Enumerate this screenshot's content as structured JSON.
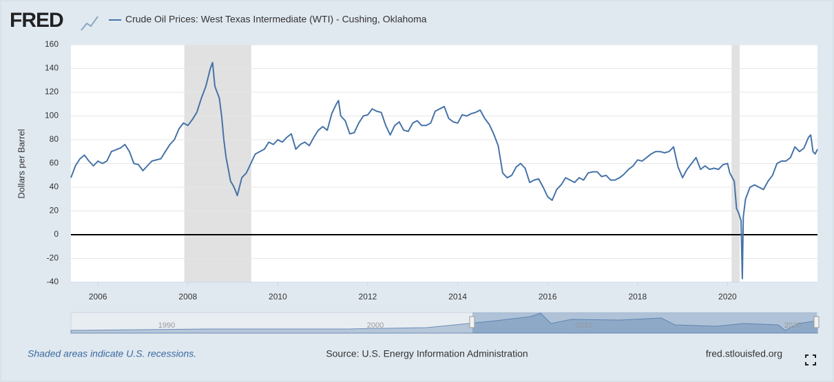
{
  "brand": "FRED",
  "chart_data": {
    "type": "line",
    "ylabel": "Dollars per Barrel",
    "xlim": [
      2005.4,
      2022.0
    ],
    "xticks": [
      2006,
      2008,
      2010,
      2012,
      2014,
      2016,
      2018,
      2020
    ],
    "ylim": [
      -40,
      160
    ],
    "yticks": [
      -40,
      -20,
      0,
      20,
      40,
      60,
      80,
      100,
      120,
      140,
      160
    ],
    "grid": true,
    "recessions": [
      [
        2007.92,
        2009.41
      ],
      [
        2020.09,
        2020.27
      ]
    ],
    "x": [
      2005.4,
      2005.5,
      2005.6,
      2005.7,
      2005.8,
      2005.9,
      2006.0,
      2006.1,
      2006.2,
      2006.3,
      2006.5,
      2006.6,
      2006.7,
      2006.8,
      2006.9,
      2007.0,
      2007.1,
      2007.2,
      2007.4,
      2007.5,
      2007.6,
      2007.7,
      2007.8,
      2007.9,
      2008.0,
      2008.1,
      2008.2,
      2008.3,
      2008.4,
      2008.5,
      2008.55,
      2008.6,
      2008.7,
      2008.75,
      2008.8,
      2008.85,
      2008.9,
      2008.95,
      2009.0,
      2009.05,
      2009.1,
      2009.2,
      2009.3,
      2009.4,
      2009.5,
      2009.6,
      2009.7,
      2009.8,
      2009.9,
      2010.0,
      2010.1,
      2010.2,
      2010.3,
      2010.4,
      2010.5,
      2010.6,
      2010.7,
      2010.8,
      2010.9,
      2011.0,
      2011.1,
      2011.2,
      2011.3,
      2011.35,
      2011.4,
      2011.5,
      2011.6,
      2011.7,
      2011.8,
      2011.9,
      2012.0,
      2012.1,
      2012.2,
      2012.3,
      2012.4,
      2012.5,
      2012.6,
      2012.7,
      2012.8,
      2012.9,
      2013.0,
      2013.1,
      2013.2,
      2013.3,
      2013.4,
      2013.5,
      2013.6,
      2013.7,
      2013.8,
      2013.9,
      2014.0,
      2014.1,
      2014.2,
      2014.3,
      2014.4,
      2014.5,
      2014.6,
      2014.7,
      2014.8,
      2014.9,
      2015.0,
      2015.1,
      2015.2,
      2015.3,
      2015.4,
      2015.5,
      2015.6,
      2015.7,
      2015.8,
      2015.9,
      2016.0,
      2016.1,
      2016.2,
      2016.3,
      2016.4,
      2016.5,
      2016.6,
      2016.7,
      2016.8,
      2016.9,
      2017.0,
      2017.1,
      2017.2,
      2017.3,
      2017.4,
      2017.5,
      2017.6,
      2017.7,
      2017.8,
      2017.9,
      2018.0,
      2018.1,
      2018.2,
      2018.3,
      2018.4,
      2018.5,
      2018.6,
      2018.7,
      2018.8,
      2018.9,
      2019.0,
      2019.1,
      2019.2,
      2019.3,
      2019.4,
      2019.5,
      2019.6,
      2019.7,
      2019.8,
      2019.9,
      2020.0,
      2020.05,
      2020.15,
      2020.2,
      2020.25,
      2020.3,
      2020.33,
      2020.35,
      2020.4,
      2020.5,
      2020.6,
      2020.7,
      2020.8,
      2020.9,
      2021.0,
      2021.1,
      2021.2,
      2021.3,
      2021.4,
      2021.5,
      2021.6,
      2021.7,
      2021.8,
      2021.85,
      2021.9,
      2021.95,
      2022.0
    ],
    "series": [
      {
        "name": "Crude Oil Prices: West Texas Intermediate (WTI) - Cushing, Oklahoma",
        "color": "#4572a7",
        "values": [
          48,
          58,
          64,
          67,
          62,
          58,
          62,
          60,
          62,
          70,
          73,
          76,
          70,
          60,
          59,
          54,
          58,
          62,
          64,
          70,
          76,
          80,
          89,
          94,
          92,
          97,
          103,
          115,
          125,
          140,
          145,
          125,
          115,
          100,
          80,
          65,
          55,
          45,
          42,
          38,
          33,
          48,
          52,
          60,
          68,
          70,
          72,
          78,
          76,
          80,
          78,
          82,
          85,
          72,
          76,
          78,
          75,
          82,
          88,
          91,
          88,
          102,
          110,
          113,
          100,
          96,
          85,
          86,
          94,
          100,
          101,
          106,
          104,
          103,
          92,
          84,
          92,
          95,
          88,
          87,
          94,
          96,
          92,
          92,
          94,
          104,
          106,
          108,
          98,
          95,
          94,
          101,
          100,
          102,
          103,
          105,
          98,
          93,
          85,
          75,
          52,
          48,
          50,
          57,
          60,
          56,
          44,
          46,
          47,
          40,
          32,
          29,
          38,
          42,
          48,
          46,
          44,
          48,
          46,
          52,
          53,
          53,
          49,
          50,
          46,
          46,
          48,
          51,
          55,
          58,
          63,
          62,
          65,
          68,
          70,
          70,
          69,
          70,
          74,
          57,
          48,
          55,
          60,
          65,
          55,
          58,
          55,
          56,
          55,
          59,
          60,
          52,
          45,
          22,
          18,
          12,
          -37,
          15,
          30,
          40,
          42,
          40,
          38,
          45,
          50,
          60,
          62,
          62,
          65,
          74,
          70,
          73,
          82,
          84,
          70,
          68,
          72
        ]
      }
    ]
  },
  "navigator": {
    "labels": [
      "1990",
      "2000",
      "2010",
      "2020"
    ]
  },
  "footer": {
    "note": "Shaded areas indicate U.S. recessions.",
    "source": "Source: U.S. Energy Information Administration",
    "site": "fred.stlouisfed.org"
  }
}
